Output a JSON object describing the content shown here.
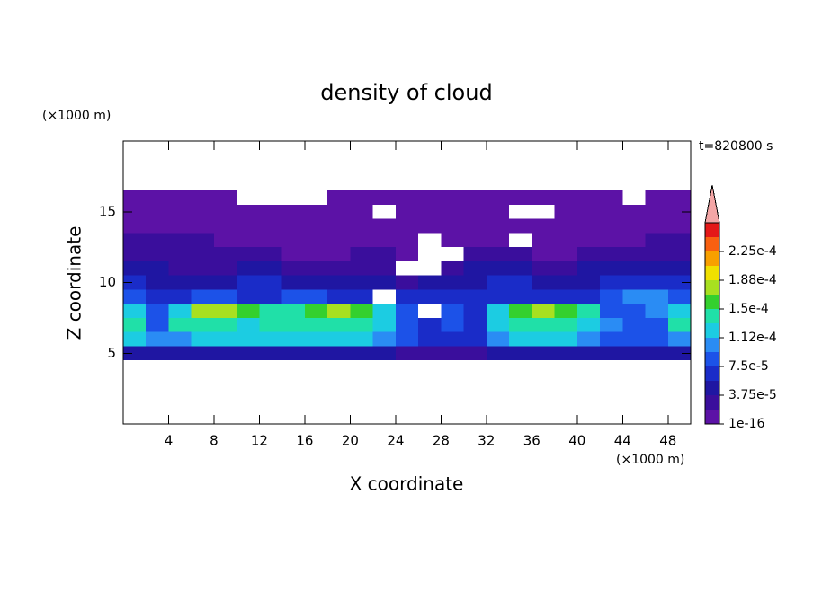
{
  "chart_data": {
    "type": "contour",
    "title": "density of cloud",
    "x_label": "X coordinate",
    "y_label": "Z coordinate",
    "x_unit": "(×1000 m)",
    "y_unit": "(×1000 m)",
    "time_label": "t=820800 s",
    "xlim": [
      0,
      50
    ],
    "ylim": [
      0,
      20
    ],
    "xticks": [
      4,
      8,
      12,
      16,
      20,
      24,
      28,
      32,
      36,
      40,
      44,
      48
    ],
    "yticks": [
      5,
      10,
      15
    ],
    "x": [
      1,
      3,
      5,
      7,
      9,
      11,
      13,
      15,
      17,
      19,
      21,
      23,
      25,
      27,
      29,
      31,
      33,
      35,
      37,
      39,
      41,
      43,
      45,
      47,
      49
    ],
    "y": [
      16,
      15,
      14,
      13,
      12,
      11,
      10,
      9,
      8,
      7,
      6,
      5
    ],
    "values": [
      [
        5e-06,
        5e-06,
        5e-06,
        5e-06,
        5e-06,
        null,
        null,
        null,
        null,
        5e-06,
        5e-06,
        5e-06,
        5e-06,
        5e-06,
        5e-06,
        5e-06,
        5e-06,
        5e-06,
        5e-06,
        5e-06,
        5e-06,
        5e-06,
        null,
        5e-06,
        5e-06
      ],
      [
        5e-06,
        5e-06,
        5e-06,
        5e-06,
        5e-06,
        5e-06,
        5e-06,
        5e-06,
        5e-06,
        5e-06,
        5e-06,
        null,
        5e-06,
        5e-06,
        5e-06,
        5e-06,
        5e-06,
        null,
        null,
        5e-06,
        5e-06,
        5e-06,
        5e-06,
        5e-06,
        5e-06
      ],
      [
        5e-06,
        5e-06,
        5e-06,
        5e-06,
        5e-06,
        5e-06,
        5e-06,
        5e-06,
        5e-06,
        5e-06,
        5e-06,
        5e-06,
        5e-06,
        5e-06,
        5e-06,
        5e-06,
        5e-06,
        5e-06,
        5e-06,
        5e-06,
        5e-06,
        5e-06,
        5e-06,
        5e-06,
        5e-06
      ],
      [
        2.5e-05,
        2.5e-05,
        2.5e-05,
        2.5e-05,
        5e-06,
        5e-06,
        5e-06,
        5e-06,
        5e-06,
        5e-06,
        5e-06,
        5e-06,
        5e-06,
        null,
        5e-06,
        5e-06,
        5e-06,
        null,
        5e-06,
        5e-06,
        5e-06,
        5e-06,
        5e-06,
        2.5e-05,
        2.5e-05
      ],
      [
        2.5e-05,
        2.5e-05,
        2.5e-05,
        2.5e-05,
        2.5e-05,
        2.5e-05,
        2.5e-05,
        5e-06,
        5e-06,
        5e-06,
        2.5e-05,
        2.5e-05,
        5e-06,
        null,
        null,
        2.5e-05,
        2.5e-05,
        2.5e-05,
        5e-06,
        5e-06,
        2.5e-05,
        2.5e-05,
        2.5e-05,
        2.5e-05,
        2.5e-05
      ],
      [
        4.5e-05,
        4.5e-05,
        2.5e-05,
        2.5e-05,
        2.5e-05,
        4.5e-05,
        4.5e-05,
        2.5e-05,
        2.5e-05,
        2.5e-05,
        2.5e-05,
        2.5e-05,
        null,
        null,
        2.5e-05,
        4.5e-05,
        4.5e-05,
        4.5e-05,
        2.5e-05,
        2.5e-05,
        4.5e-05,
        4.5e-05,
        4.5e-05,
        4.5e-05,
        4.5e-05
      ],
      [
        6.5e-05,
        4.5e-05,
        4.5e-05,
        4.5e-05,
        4.5e-05,
        6.5e-05,
        6.5e-05,
        4.5e-05,
        4.5e-05,
        4.5e-05,
        4.5e-05,
        4.5e-05,
        2.5e-05,
        4.5e-05,
        4.5e-05,
        4.5e-05,
        6.5e-05,
        6.5e-05,
        4.5e-05,
        4.5e-05,
        4.5e-05,
        6.5e-05,
        6.5e-05,
        6.5e-05,
        6.5e-05
      ],
      [
        8.5e-05,
        6.5e-05,
        6.5e-05,
        8.5e-05,
        8.5e-05,
        6.5e-05,
        6.5e-05,
        8.5e-05,
        8.5e-05,
        6.5e-05,
        6.5e-05,
        null,
        6.5e-05,
        6.5e-05,
        6.5e-05,
        6.5e-05,
        6.5e-05,
        6.5e-05,
        6.5e-05,
        6.5e-05,
        6.5e-05,
        8.5e-05,
        0.0001,
        0.0001,
        8.5e-05
      ],
      [
        0.00012,
        8.5e-05,
        0.00012,
        0.000175,
        0.000175,
        0.00016,
        0.00014,
        0.00014,
        0.00016,
        0.000175,
        0.00016,
        0.00012,
        8.5e-05,
        null,
        8.5e-05,
        6.5e-05,
        0.00012,
        0.00016,
        0.000175,
        0.00016,
        0.00014,
        8.5e-05,
        8.5e-05,
        0.0001,
        0.00012
      ],
      [
        0.00014,
        8.5e-05,
        0.00014,
        0.00014,
        0.00014,
        0.00012,
        0.00014,
        0.00014,
        0.00014,
        0.00014,
        0.00014,
        0.00012,
        8.5e-05,
        6.5e-05,
        8.5e-05,
        6.5e-05,
        0.00012,
        0.00014,
        0.00014,
        0.00014,
        0.00012,
        0.0001,
        8.5e-05,
        8.5e-05,
        0.00014
      ],
      [
        0.00012,
        0.0001,
        0.0001,
        0.00012,
        0.00012,
        0.00012,
        0.00012,
        0.00012,
        0.00012,
        0.00012,
        0.00012,
        0.0001,
        8.5e-05,
        6.5e-05,
        6.5e-05,
        6.5e-05,
        0.0001,
        0.00012,
        0.00012,
        0.00012,
        0.0001,
        8.5e-05,
        8.5e-05,
        8.5e-05,
        0.0001
      ],
      [
        4.5e-05,
        4.5e-05,
        4.5e-05,
        4.5e-05,
        4.5e-05,
        4.5e-05,
        4.5e-05,
        4.5e-05,
        4.5e-05,
        4.5e-05,
        4.5e-05,
        4.5e-05,
        2.5e-05,
        2.5e-05,
        2.5e-05,
        2.5e-05,
        4.5e-05,
        4.5e-05,
        4.5e-05,
        4.5e-05,
        4.5e-05,
        4.5e-05,
        4.5e-05,
        4.5e-05,
        4.5e-05
      ]
    ],
    "levels": [
      1e-16,
      1.875e-05,
      3.75e-05,
      5.625e-05,
      7.5e-05,
      9.375e-05,
      0.0001125,
      0.00013125,
      0.00015,
      0.00016875,
      0.0001875,
      0.00020625,
      0.000225,
      0.00024375,
      0.0002625
    ],
    "colors": [
      "#5c12a6",
      "#3a0e9c",
      "#1f16a2",
      "#1a2cc8",
      "#1c52e8",
      "#2a8cf4",
      "#1ccce2",
      "#20e0a8",
      "#34d02e",
      "#a8e020",
      "#f0e000",
      "#f8a000",
      "#f86010",
      "#e41818"
    ],
    "extend_color": "#f4a6a6",
    "colorbar_ticks": [
      1e-16,
      {
        "value": 3.75e-05,
        "label": "3.75e-5"
      },
      {
        "value": 7.5e-05,
        "label": "7.5e-5"
      },
      {
        "value": 0.0001125,
        "label": "1.12e-4"
      },
      {
        "value": 0.00015,
        "label": "1.5e-4"
      },
      {
        "value": 0.0001875,
        "label": "1.88e-4"
      },
      {
        "value": 0.000225,
        "label": "2.25e-4"
      }
    ]
  }
}
